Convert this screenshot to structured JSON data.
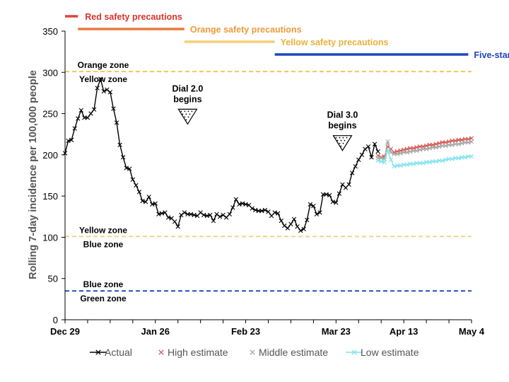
{
  "chart_data": {
    "type": "line",
    "title": "",
    "xlabel": "",
    "ylabel": "Rolling 7-day  incidence per 100,000 people",
    "ylim": [
      0,
      350
    ],
    "yticks": [
      0,
      50,
      100,
      150,
      200,
      250,
      300,
      350
    ],
    "x_range": [
      "2020-12-29",
      "2021-05-04"
    ],
    "xticks": [
      {
        "date": "2020-12-29",
        "label": "Dec 29"
      },
      {
        "date": "2021-01-26",
        "label": "Jan 26"
      },
      {
        "date": "2021-02-23",
        "label": "Feb 23"
      },
      {
        "date": "2021-03-23",
        "label": "Mar 23"
      },
      {
        "date": "2021-04-13",
        "label": "Apr 13"
      },
      {
        "date": "2021-05-04",
        "label": "May 4"
      }
    ],
    "grid": false,
    "legend_position": "bottom",
    "series": [
      {
        "name": "Actual",
        "color": "#000000",
        "marker": "x",
        "points": [
          [
            "2020-12-29",
            202
          ],
          [
            "2020-12-30",
            217
          ],
          [
            "2020-12-31",
            218
          ],
          [
            "2021-01-01",
            232
          ],
          [
            "2021-01-02",
            244
          ],
          [
            "2021-01-03",
            254
          ],
          [
            "2021-01-04",
            245
          ],
          [
            "2021-01-05",
            245
          ],
          [
            "2021-01-06",
            250
          ],
          [
            "2021-01-07",
            255
          ],
          [
            "2021-01-08",
            281
          ],
          [
            "2021-01-09",
            292
          ],
          [
            "2021-01-10",
            277
          ],
          [
            "2021-01-11",
            279
          ],
          [
            "2021-01-12",
            276
          ],
          [
            "2021-01-13",
            256
          ],
          [
            "2021-01-14",
            239
          ],
          [
            "2021-01-15",
            212
          ],
          [
            "2021-01-16",
            197
          ],
          [
            "2021-01-17",
            184
          ],
          [
            "2021-01-18",
            183
          ],
          [
            "2021-01-19",
            170
          ],
          [
            "2021-01-20",
            163
          ],
          [
            "2021-01-21",
            155
          ],
          [
            "2021-01-22",
            144
          ],
          [
            "2021-01-23",
            143
          ],
          [
            "2021-01-24",
            149
          ],
          [
            "2021-01-25",
            140
          ],
          [
            "2021-01-26",
            141
          ],
          [
            "2021-01-27",
            128
          ],
          [
            "2021-01-28",
            129
          ],
          [
            "2021-01-29",
            130
          ],
          [
            "2021-01-30",
            124
          ],
          [
            "2021-01-31",
            123
          ],
          [
            "2021-02-01",
            119
          ],
          [
            "2021-02-02",
            113
          ],
          [
            "2021-02-03",
            127
          ],
          [
            "2021-02-04",
            130
          ],
          [
            "2021-02-05",
            128
          ],
          [
            "2021-02-06",
            128
          ],
          [
            "2021-02-07",
            127
          ],
          [
            "2021-02-08",
            126
          ],
          [
            "2021-02-09",
            130
          ],
          [
            "2021-02-10",
            127
          ],
          [
            "2021-02-11",
            126
          ],
          [
            "2021-02-12",
            127
          ],
          [
            "2021-02-13",
            120
          ],
          [
            "2021-02-14",
            128
          ],
          [
            "2021-02-15",
            125
          ],
          [
            "2021-02-16",
            127
          ],
          [
            "2021-02-17",
            124
          ],
          [
            "2021-02-18",
            128
          ],
          [
            "2021-02-19",
            136
          ],
          [
            "2021-02-20",
            146
          ],
          [
            "2021-02-21",
            140
          ],
          [
            "2021-02-22",
            141
          ],
          [
            "2021-02-23",
            140
          ],
          [
            "2021-02-24",
            139
          ],
          [
            "2021-02-25",
            135
          ],
          [
            "2021-02-26",
            133
          ],
          [
            "2021-02-27",
            132
          ],
          [
            "2021-02-28",
            132
          ],
          [
            "2021-03-01",
            133
          ],
          [
            "2021-03-02",
            131
          ],
          [
            "2021-03-03",
            126
          ],
          [
            "2021-03-04",
            130
          ],
          [
            "2021-03-05",
            129
          ],
          [
            "2021-03-06",
            120
          ],
          [
            "2021-03-07",
            114
          ],
          [
            "2021-03-08",
            111
          ],
          [
            "2021-03-09",
            116
          ],
          [
            "2021-03-10",
            122
          ],
          [
            "2021-03-11",
            113
          ],
          [
            "2021-03-12",
            108
          ],
          [
            "2021-03-13",
            110
          ],
          [
            "2021-03-14",
            121
          ],
          [
            "2021-03-15",
            140
          ],
          [
            "2021-03-16",
            138
          ],
          [
            "2021-03-17",
            128
          ],
          [
            "2021-03-18",
            130
          ],
          [
            "2021-03-19",
            152
          ],
          [
            "2021-03-20",
            152
          ],
          [
            "2021-03-21",
            151
          ],
          [
            "2021-03-22",
            143
          ],
          [
            "2021-03-23",
            142
          ],
          [
            "2021-03-24",
            153
          ],
          [
            "2021-03-25",
            164
          ],
          [
            "2021-03-26",
            160
          ],
          [
            "2021-03-27",
            164
          ],
          [
            "2021-03-28",
            178
          ],
          [
            "2021-03-29",
            186
          ],
          [
            "2021-03-30",
            194
          ],
          [
            "2021-03-31",
            200
          ],
          [
            "2021-04-01",
            207
          ],
          [
            "2021-04-02",
            210
          ],
          [
            "2021-04-03",
            197
          ],
          [
            "2021-04-04",
            213
          ],
          [
            "2021-04-05",
            204
          ]
        ]
      },
      {
        "name": "High estimate",
        "color": "#d9534f",
        "marker": "x",
        "points": [
          [
            "2021-04-05",
            199
          ],
          [
            "2021-04-06",
            197
          ],
          [
            "2021-04-07",
            198
          ],
          [
            "2021-04-08",
            210
          ],
          [
            "2021-04-09",
            207
          ],
          [
            "2021-04-10",
            203
          ],
          [
            "2021-04-11",
            204
          ],
          [
            "2021-04-12",
            205
          ],
          [
            "2021-04-13",
            206
          ],
          [
            "2021-04-14",
            207
          ],
          [
            "2021-04-15",
            208
          ],
          [
            "2021-04-16",
            208
          ],
          [
            "2021-04-17",
            209
          ],
          [
            "2021-04-18",
            210
          ],
          [
            "2021-04-19",
            210
          ],
          [
            "2021-04-20",
            211
          ],
          [
            "2021-04-21",
            212
          ],
          [
            "2021-04-22",
            212
          ],
          [
            "2021-04-23",
            213
          ],
          [
            "2021-04-24",
            214
          ],
          [
            "2021-04-25",
            215
          ],
          [
            "2021-04-26",
            215
          ],
          [
            "2021-04-27",
            216
          ],
          [
            "2021-04-28",
            217
          ],
          [
            "2021-04-29",
            217
          ],
          [
            "2021-04-30",
            218
          ],
          [
            "2021-05-01",
            218
          ],
          [
            "2021-05-02",
            219
          ],
          [
            "2021-05-03",
            219
          ],
          [
            "2021-05-04",
            220
          ]
        ]
      },
      {
        "name": "Middle estimate",
        "color": "#a6a6a6",
        "marker": "x",
        "points": [
          [
            "2021-04-05",
            196
          ],
          [
            "2021-04-06",
            196
          ],
          [
            "2021-04-07",
            195
          ],
          [
            "2021-04-08",
            216
          ],
          [
            "2021-04-09",
            203
          ],
          [
            "2021-04-10",
            201
          ],
          [
            "2021-04-11",
            201
          ],
          [
            "2021-04-12",
            202
          ],
          [
            "2021-04-13",
            203
          ],
          [
            "2021-04-14",
            203
          ],
          [
            "2021-04-15",
            204
          ],
          [
            "2021-04-16",
            205
          ],
          [
            "2021-04-17",
            205
          ],
          [
            "2021-04-18",
            206
          ],
          [
            "2021-04-19",
            207
          ],
          [
            "2021-04-20",
            207
          ],
          [
            "2021-04-21",
            208
          ],
          [
            "2021-04-22",
            209
          ],
          [
            "2021-04-23",
            209
          ],
          [
            "2021-04-24",
            210
          ],
          [
            "2021-04-25",
            211
          ],
          [
            "2021-04-26",
            211
          ],
          [
            "2021-04-27",
            212
          ],
          [
            "2021-04-28",
            212
          ],
          [
            "2021-04-29",
            213
          ],
          [
            "2021-04-30",
            213
          ],
          [
            "2021-05-01",
            214
          ],
          [
            "2021-05-02",
            215
          ],
          [
            "2021-05-03",
            215
          ],
          [
            "2021-05-04",
            216
          ]
        ]
      },
      {
        "name": "Low estimate",
        "color": "#7fe3f0",
        "marker": "x",
        "points": [
          [
            "2021-04-05",
            193
          ],
          [
            "2021-04-06",
            192
          ],
          [
            "2021-04-07",
            191
          ],
          [
            "2021-04-08",
            205
          ],
          [
            "2021-04-09",
            194
          ],
          [
            "2021-04-10",
            186
          ],
          [
            "2021-04-11",
            187
          ],
          [
            "2021-04-12",
            187
          ],
          [
            "2021-04-13",
            188
          ],
          [
            "2021-04-14",
            188
          ],
          [
            "2021-04-15",
            189
          ],
          [
            "2021-04-16",
            189
          ],
          [
            "2021-04-17",
            190
          ],
          [
            "2021-04-18",
            190
          ],
          [
            "2021-04-19",
            190
          ],
          [
            "2021-04-20",
            191
          ],
          [
            "2021-04-21",
            191
          ],
          [
            "2021-04-22",
            192
          ],
          [
            "2021-04-23",
            192
          ],
          [
            "2021-04-24",
            193
          ],
          [
            "2021-04-25",
            193
          ],
          [
            "2021-04-26",
            194
          ],
          [
            "2021-04-27",
            195
          ],
          [
            "2021-04-28",
            195
          ],
          [
            "2021-04-29",
            196
          ],
          [
            "2021-04-30",
            196
          ],
          [
            "2021-05-01",
            197
          ],
          [
            "2021-05-02",
            197
          ],
          [
            "2021-05-03",
            198
          ],
          [
            "2021-05-04",
            198
          ]
        ]
      }
    ],
    "reference_lines": [
      {
        "y": 301,
        "color": "#f2c85b",
        "upper_label": "Orange zone",
        "lower_label": "Yellow zone"
      },
      {
        "y": 101,
        "color": "#f2d28b",
        "upper_label": "Yellow zone",
        "lower_label": "Blue zone"
      },
      {
        "y": 35,
        "color": "#1f4fbf",
        "upper_label": "Blue zone",
        "lower_label": "Green zone"
      }
    ],
    "periods": [
      {
        "label": "Red safety precautions",
        "start": "2020-12-29",
        "end": "2021-01-02",
        "color": "#e0443e",
        "label_color": "#d9342b"
      },
      {
        "label": "Orange safety precautions",
        "start": "2021-01-02",
        "end": "2021-02-04",
        "color": "#ec7a3c",
        "label_color": "#ef9a3b"
      },
      {
        "label": "Yellow safety precautions",
        "start": "2021-02-04",
        "end": "2021-03-04",
        "color": "#f5cf7a",
        "label_color": "#e8b23a"
      },
      {
        "label": "Five-star program",
        "start": "2021-03-04",
        "end": "2021-05-03",
        "color": "#1f45c2",
        "label_color": "#1f45c2"
      }
    ],
    "annotations": [
      {
        "lines": [
          "Dial 2.0",
          "begins"
        ],
        "date": "2021-02-05",
        "y": 227
      },
      {
        "lines": [
          "Dial 3.0",
          "begins"
        ],
        "date": "2021-03-25",
        "y": 195
      }
    ]
  }
}
